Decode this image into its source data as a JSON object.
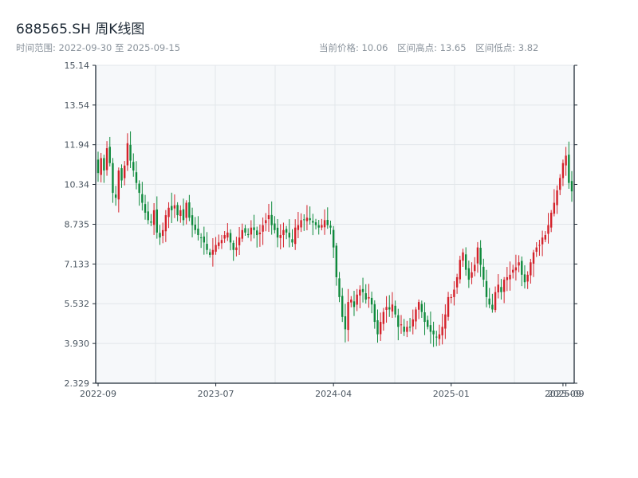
{
  "header": {
    "title": "688565.SH 周K线图",
    "subtitle": "时间范围: 2022-09-30 至 2025-09-15",
    "stats": [
      "当前价格: 10.06",
      "区间高点: 13.65",
      "区间低点: 3.82"
    ]
  },
  "colors": {
    "up": "#d4212a",
    "down": "#0f8a3c",
    "plot_bg": "#f6f8fa",
    "grid": "#e2e6ea",
    "axis": "#1e2a36",
    "text": "#4a5560"
  },
  "chart_data": {
    "type": "candlestick",
    "title": "688565.SH 周K线图",
    "ylim": [
      2.329,
      15.14
    ],
    "y_ticks": [
      "15.14",
      "13.54",
      "11.94",
      "10.34",
      "8.735",
      "7.133",
      "5.532",
      "3.930",
      "2.329"
    ],
    "x_ticks": [
      "2022-09",
      "2023-07",
      "2024-04",
      "2025-01",
      "2025-09",
      "2025-09"
    ],
    "x_tick_weeks": [
      0,
      40,
      80,
      120,
      158,
      159
    ],
    "grid": true,
    "weekly_close_approx": [
      10.8,
      11.4,
      10.9,
      11.8,
      11.2,
      10.0,
      9.8,
      10.9,
      10.5,
      11.1,
      12.0,
      11.3,
      10.9,
      10.4,
      10.0,
      9.6,
      9.2,
      8.9,
      8.8,
      9.3,
      8.4,
      8.2,
      8.5,
      9.1,
      9.4,
      9.3,
      9.5,
      9.1,
      9.3,
      8.9,
      9.6,
      9.0,
      8.7,
      8.5,
      8.3,
      8.2,
      8.0,
      7.7,
      7.5,
      7.7,
      7.9,
      8.0,
      8.1,
      8.3,
      8.4,
      8.0,
      7.7,
      7.8,
      8.2,
      8.5,
      8.4,
      8.3,
      8.6,
      8.5,
      8.3,
      8.4,
      8.7,
      8.9,
      9.1,
      8.7,
      8.5,
      8.2,
      8.3,
      8.5,
      8.4,
      8.2,
      8.0,
      8.6,
      8.7,
      8.9,
      8.9,
      9.0,
      8.9,
      8.8,
      8.7,
      8.6,
      8.7,
      8.9,
      8.7,
      8.6,
      7.8,
      6.6,
      5.8,
      5.0,
      4.5,
      5.6,
      5.7,
      5.4,
      5.9,
      6.1,
      6.0,
      5.7,
      5.8,
      5.5,
      4.8,
      4.3,
      4.8,
      5.2,
      5.4,
      5.3,
      5.5,
      5.1,
      4.6,
      4.7,
      4.4,
      4.6,
      4.6,
      4.9,
      5.3,
      5.6,
      5.2,
      4.8,
      4.6,
      4.4,
      4.3,
      4.2,
      4.3,
      4.6,
      5.1,
      5.8,
      5.8,
      6.1,
      6.6,
      7.3,
      7.6,
      6.9,
      6.5,
      6.8,
      7.1,
      7.8,
      7.1,
      6.5,
      5.8,
      5.5,
      5.3,
      6.0,
      6.3,
      6.0,
      6.5,
      6.6,
      6.7,
      6.9,
      7.0,
      7.2,
      6.7,
      6.4,
      6.7,
      7.2,
      7.6,
      7.8,
      7.9,
      8.2,
      8.3,
      8.7,
      9.2,
      9.6,
      10.1,
      10.6,
      11.2,
      11.5,
      10.4,
      10.06
    ]
  }
}
